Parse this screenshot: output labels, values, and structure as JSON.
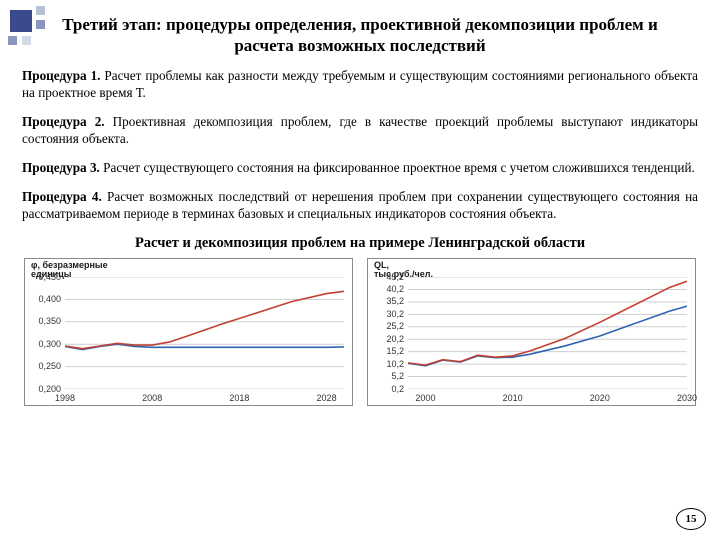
{
  "page_number": "15",
  "title": "Третий этап: процедуры определения, проективной декомпозиции проблем и расчета возможных последствий",
  "procedures": [
    {
      "lead": "Процедура 1.",
      "text": " Расчет проблемы как разности между требуемым и существующим состояниями регионального объекта на проектное время Т."
    },
    {
      "lead": "Процедура 2.",
      "text": " Проективная декомпозиция проблем, где в качестве проекций проблемы выступают индикаторы состояния объекта."
    },
    {
      "lead": "Процедура 3.",
      "text": " Расчет существующего состояния на фиксированное проектное время с учетом сложившихся тенденций."
    },
    {
      "lead": "Процедура 4.",
      "text": " Расчет возможных последствий от нерешения проблем при сохранении существующего состояния на рассматриваемом периоде в терминах базовых и специальных индикаторов состояния объекта."
    }
  ],
  "subtitle": "Расчет и декомпозиция проблем на примере Ленинградской области",
  "chart_left": {
    "type": "line",
    "ylabel": "φ, безразмерные\nединицы",
    "xticks": [
      "1998",
      "2008",
      "2018",
      "2028"
    ],
    "yticks": [
      "0,200",
      "0,250",
      "0,300",
      "0,350",
      "0,400",
      "0,450"
    ],
    "ylim": [
      0.2,
      0.45
    ],
    "xlim": [
      1998,
      2030
    ],
    "grid_color": "#cfcfcf",
    "series": [
      {
        "color": "#2e65b0",
        "points": [
          [
            1998,
            0.295
          ],
          [
            2000,
            0.288
          ],
          [
            2002,
            0.295
          ],
          [
            2004,
            0.3
          ],
          [
            2006,
            0.295
          ],
          [
            2008,
            0.293
          ],
          [
            2010,
            0.293
          ],
          [
            2012,
            0.293
          ],
          [
            2016,
            0.293
          ],
          [
            2020,
            0.293
          ],
          [
            2024,
            0.293
          ],
          [
            2028,
            0.293
          ],
          [
            2030,
            0.294
          ]
        ]
      },
      {
        "color": "#c24032",
        "points": [
          [
            1998,
            0.296
          ],
          [
            2000,
            0.29
          ],
          [
            2002,
            0.296
          ],
          [
            2004,
            0.302
          ],
          [
            2006,
            0.298
          ],
          [
            2008,
            0.298
          ],
          [
            2010,
            0.305
          ],
          [
            2012,
            0.318
          ],
          [
            2016,
            0.345
          ],
          [
            2020,
            0.37
          ],
          [
            2024,
            0.395
          ],
          [
            2028,
            0.413
          ],
          [
            2030,
            0.418
          ]
        ]
      }
    ]
  },
  "chart_right": {
    "type": "line",
    "ylabel": "QL,\nтыс.руб./чел.",
    "xticks": [
      "2000",
      "2010",
      "2020",
      "2030"
    ],
    "yticks": [
      "0,2",
      "5,2",
      "10,2",
      "15,2",
      "20,2",
      "25,2",
      "30,2",
      "35,2",
      "40,2",
      "45,2"
    ],
    "ylim": [
      0.2,
      45.2
    ],
    "xlim": [
      1998,
      2030
    ],
    "grid_color": "#cfcfcf",
    "series": [
      {
        "color": "#2e65b0",
        "points": [
          [
            1998,
            10.5
          ],
          [
            2000,
            9.5
          ],
          [
            2002,
            11.8
          ],
          [
            2004,
            11.0
          ],
          [
            2006,
            13.5
          ],
          [
            2008,
            12.8
          ],
          [
            2010,
            13.0
          ],
          [
            2012,
            14.2
          ],
          [
            2016,
            17.5
          ],
          [
            2020,
            21.5
          ],
          [
            2024,
            26.5
          ],
          [
            2028,
            31.5
          ],
          [
            2030,
            33.5
          ]
        ]
      },
      {
        "color": "#c24032",
        "points": [
          [
            1998,
            10.7
          ],
          [
            2000,
            9.8
          ],
          [
            2002,
            12.0
          ],
          [
            2004,
            11.2
          ],
          [
            2006,
            13.8
          ],
          [
            2008,
            13.0
          ],
          [
            2010,
            13.5
          ],
          [
            2012,
            15.5
          ],
          [
            2016,
            20.5
          ],
          [
            2020,
            27.0
          ],
          [
            2024,
            34.0
          ],
          [
            2028,
            41.0
          ],
          [
            2030,
            43.5
          ]
        ]
      }
    ]
  }
}
